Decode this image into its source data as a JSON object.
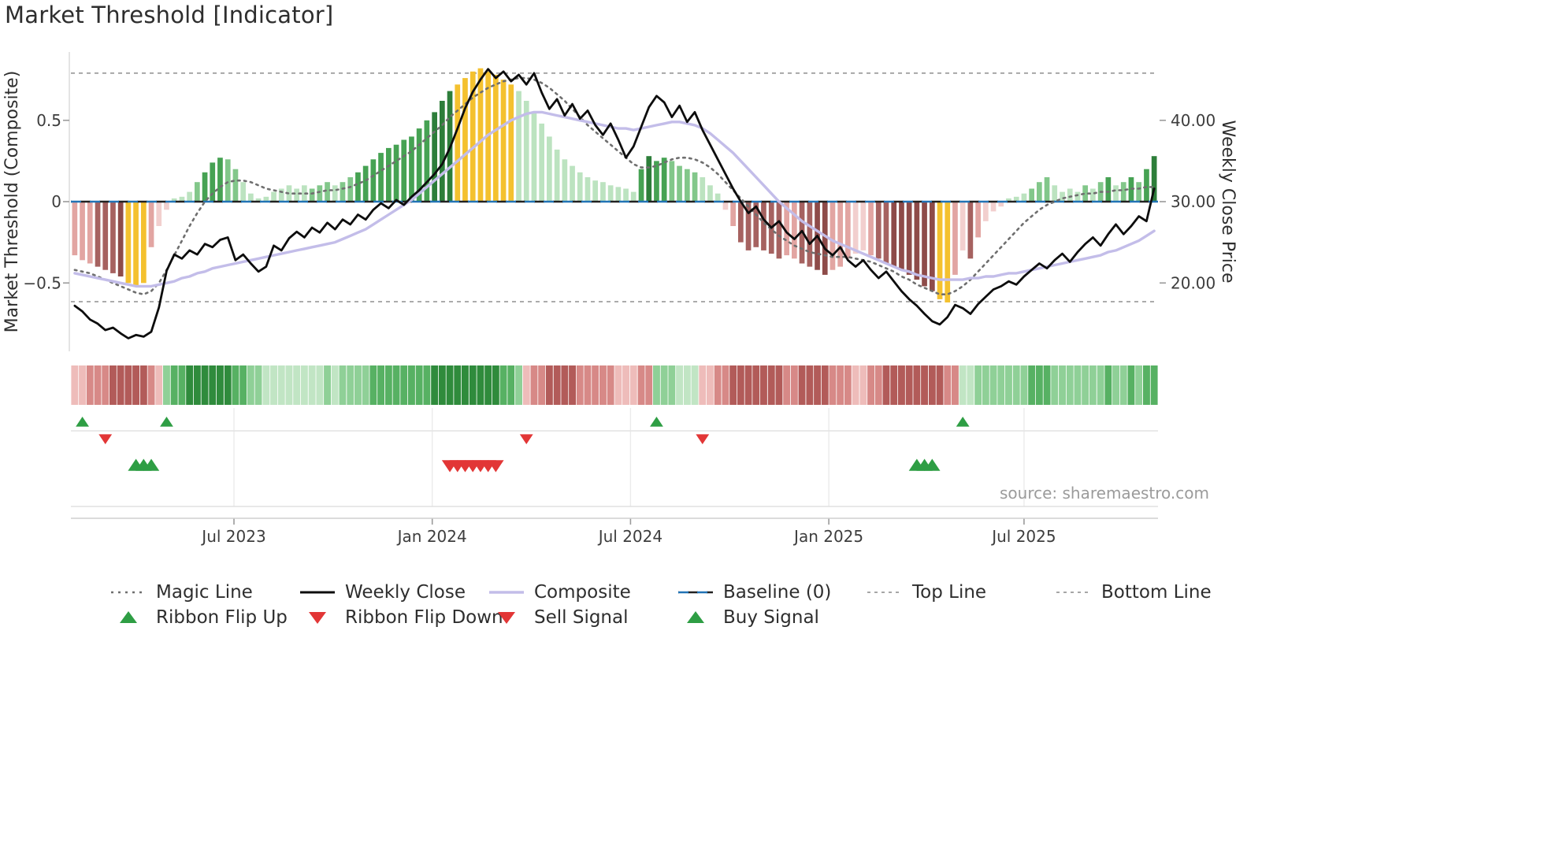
{
  "title": "Market Threshold [Indicator]",
  "source": "source: sharemaestro.com",
  "legend": {
    "row1": [
      {
        "label": "Magic Line",
        "type": "line",
        "color": "#6f6f6f",
        "dash": "3 6",
        "width": 2.6
      },
      {
        "label": "Weekly Close",
        "type": "line",
        "color": "#0d0d0d",
        "dash": "",
        "width": 3
      },
      {
        "label": "Composite",
        "type": "line",
        "color": "#c3bde9",
        "dash": "",
        "width": 3.5
      },
      {
        "label": "Baseline (0)",
        "type": "dashpair",
        "color": "#2273b5",
        "color2": "#222222",
        "dash": "13 11",
        "width": 2.6
      },
      {
        "label": "Top Line",
        "type": "line",
        "color": "#9a9a9a",
        "dash": "4 5",
        "width": 1.8
      },
      {
        "label": "Bottom Line",
        "type": "line",
        "color": "#9a9a9a",
        "dash": "4 5",
        "width": 1.8
      }
    ],
    "row2": [
      {
        "label": "Ribbon Flip Up",
        "type": "tri-up",
        "color": "#2e9e44"
      },
      {
        "label": "Ribbon Flip Down",
        "type": "tri-down",
        "color": "#e23636"
      },
      {
        "label": "Sell Signal",
        "type": "tri-down",
        "color": "#e23636"
      },
      {
        "label": "Buy Signal",
        "type": "tri-up",
        "color": "#2e9e44"
      }
    ]
  },
  "chart_data": {
    "type": "bar+line",
    "title": "Market Threshold [Indicator]",
    "frequency": "weekly",
    "left_axis": {
      "title": "Market Threshold (Composite)",
      "ticks": [
        {
          "v": 0.5,
          "label": "0.5"
        },
        {
          "v": 0,
          "label": "0"
        },
        {
          "v": -0.5,
          "label": "−0.5"
        }
      ],
      "ylim": [
        -0.9,
        0.9
      ]
    },
    "right_axis": {
      "title": "Weekly Close Price",
      "ticks": [
        {
          "v": 0.5,
          "label": "40.00"
        },
        {
          "v": 0,
          "label": "30.00"
        },
        {
          "v": -0.5,
          "label": "20.00"
        }
      ],
      "ylim": [
        12,
        48
      ]
    },
    "x_axis": {
      "ticks": [
        {
          "week": 21.3,
          "label": "Jul 2023"
        },
        {
          "week": 47.2,
          "label": "Jan 2024"
        },
        {
          "week": 73.1,
          "label": "Jul 2024"
        },
        {
          "week": 99.0,
          "label": "Jan 2025"
        },
        {
          "week": 124.5,
          "label": "Jul 2025"
        }
      ]
    },
    "baseline": 0,
    "top_line": 0.79,
    "bottom_line": -0.615,
    "threshold": [
      -0.33,
      -0.36,
      -0.38,
      -0.4,
      -0.42,
      -0.44,
      -0.46,
      -0.5,
      -0.52,
      -0.5,
      -0.28,
      -0.15,
      -0.05,
      0.02,
      0.03,
      0.06,
      0.12,
      0.18,
      0.24,
      0.27,
      0.26,
      0.2,
      0.12,
      0.05,
      0.02,
      0.03,
      0.06,
      0.08,
      0.1,
      0.08,
      0.1,
      0.08,
      0.1,
      0.12,
      0.1,
      0.12,
      0.15,
      0.18,
      0.22,
      0.26,
      0.3,
      0.33,
      0.35,
      0.38,
      0.4,
      0.45,
      0.5,
      0.55,
      0.62,
      0.68,
      0.72,
      0.76,
      0.8,
      0.82,
      0.8,
      0.78,
      0.75,
      0.72,
      0.68,
      0.62,
      0.55,
      0.48,
      0.4,
      0.32,
      0.26,
      0.22,
      0.18,
      0.15,
      0.13,
      0.12,
      0.1,
      0.09,
      0.08,
      0.06,
      0.2,
      0.28,
      0.25,
      0.27,
      0.25,
      0.22,
      0.2,
      0.18,
      0.15,
      0.1,
      0.05,
      -0.05,
      -0.15,
      -0.25,
      -0.3,
      -0.28,
      -0.3,
      -0.32,
      -0.35,
      -0.33,
      -0.35,
      -0.38,
      -0.4,
      -0.42,
      -0.45,
      -0.42,
      -0.4,
      -0.35,
      -0.32,
      -0.3,
      -0.33,
      -0.35,
      -0.38,
      -0.4,
      -0.42,
      -0.45,
      -0.48,
      -0.52,
      -0.55,
      -0.6,
      -0.62,
      -0.45,
      -0.3,
      -0.35,
      -0.22,
      -0.12,
      -0.06,
      -0.03,
      0.02,
      0.03,
      0.05,
      0.08,
      0.12,
      0.15,
      0.1,
      0.06,
      0.08,
      0.06,
      0.1,
      0.08,
      0.12,
      0.15,
      0.1,
      0.12,
      0.15,
      0.12,
      0.2,
      0.28
    ],
    "bar_colors": [
      "pM",
      "pM",
      "pM",
      "rD",
      "rD",
      "rD",
      "rK",
      "Y",
      "Y",
      "Y",
      "pM",
      "pL",
      "pL",
      "gL",
      "gL",
      "gL",
      "gM",
      "gD",
      "gD",
      "gD",
      "gM",
      "gM",
      "gL",
      "gL",
      "gL",
      "gL",
      "gL",
      "gL",
      "gL",
      "gL",
      "gL",
      "gM",
      "gM",
      "gM",
      "gL",
      "gM",
      "gM",
      "gD",
      "gD",
      "gD",
      "gD",
      "gD",
      "gD",
      "gD",
      "gD",
      "gD",
      "gD",
      "gK",
      "gK",
      "gK",
      "Y",
      "Y",
      "Y",
      "Y",
      "Y",
      "Y",
      "Y",
      "Y",
      "gL",
      "gL",
      "gL",
      "gL",
      "gL",
      "gL",
      "gL",
      "gL",
      "gL",
      "gL",
      "gL",
      "gL",
      "gL",
      "gL",
      "gL",
      "gL",
      "gD",
      "gK",
      "gD",
      "gD",
      "gM",
      "gM",
      "gM",
      "gM",
      "gL",
      "gL",
      "gL",
      "pL",
      "pM",
      "rD",
      "rD",
      "rD",
      "rD",
      "rD",
      "rD",
      "pM",
      "pM",
      "rD",
      "rD",
      "rK",
      "rK",
      "pM",
      "pM",
      "pM",
      "pL",
      "pL",
      "pM",
      "rD",
      "rD",
      "rK",
      "rK",
      "rK",
      "rK",
      "rK",
      "rK",
      "Y",
      "Y",
      "pM",
      "pL",
      "rD",
      "pM",
      "pL",
      "pL",
      "pL",
      "gL",
      "gL",
      "gL",
      "gM",
      "gM",
      "gM",
      "gL",
      "gL",
      "gL",
      "gL",
      "gM",
      "gL",
      "gM",
      "gD",
      "gL",
      "gM",
      "gD",
      "gM",
      "gD",
      "gK"
    ],
    "weekly_close": [
      17.2,
      16.5,
      15.5,
      15.0,
      14.2,
      14.5,
      13.8,
      13.2,
      13.6,
      13.4,
      14.0,
      17.0,
      21.5,
      23.5,
      23.0,
      24.0,
      23.5,
      24.8,
      24.4,
      25.3,
      25.6,
      22.8,
      23.5,
      22.4,
      21.4,
      22.0,
      24.6,
      24.0,
      25.5,
      26.3,
      25.6,
      26.8,
      26.2,
      27.4,
      26.6,
      27.8,
      27.2,
      28.4,
      27.8,
      29.0,
      29.8,
      29.2,
      30.2,
      29.6,
      30.6,
      31.4,
      32.4,
      33.4,
      34.6,
      36.6,
      39.0,
      41.5,
      43.5,
      45.0,
      46.3,
      45.2,
      46.0,
      44.8,
      45.6,
      44.4,
      45.8,
      43.4,
      41.4,
      42.6,
      40.6,
      42.0,
      40.2,
      41.2,
      39.4,
      38.2,
      39.6,
      37.6,
      35.4,
      36.8,
      39.2,
      41.6,
      43.0,
      42.2,
      40.4,
      41.8,
      39.8,
      41.0,
      38.8,
      37.0,
      35.2,
      33.4,
      31.6,
      30.0,
      28.6,
      29.4,
      27.8,
      26.8,
      27.6,
      26.2,
      25.4,
      26.4,
      24.8,
      25.8,
      24.2,
      23.4,
      24.4,
      22.8,
      22.0,
      22.8,
      21.6,
      20.6,
      21.4,
      20.2,
      19.0,
      18.0,
      17.2,
      16.2,
      15.3,
      14.9,
      15.8,
      17.3,
      16.9,
      16.2,
      17.4,
      18.3,
      19.2,
      19.6,
      20.2,
      19.8,
      20.8,
      21.6,
      22.4,
      21.8,
      22.8,
      23.6,
      22.6,
      23.8,
      24.8,
      25.6,
      24.6,
      26.0,
      27.2,
      26.0,
      27.0,
      28.2,
      27.6,
      31.6
    ],
    "magic_line": [
      -0.42,
      -0.43,
      -0.44,
      -0.46,
      -0.48,
      -0.5,
      -0.52,
      -0.54,
      -0.56,
      -0.57,
      -0.55,
      -0.5,
      -0.42,
      -0.33,
      -0.24,
      -0.15,
      -0.07,
      0.0,
      0.05,
      0.09,
      0.12,
      0.13,
      0.13,
      0.12,
      0.1,
      0.08,
      0.07,
      0.06,
      0.05,
      0.05,
      0.05,
      0.05,
      0.06,
      0.07,
      0.07,
      0.08,
      0.09,
      0.11,
      0.13,
      0.16,
      0.19,
      0.22,
      0.25,
      0.28,
      0.31,
      0.35,
      0.39,
      0.43,
      0.47,
      0.52,
      0.56,
      0.6,
      0.64,
      0.67,
      0.7,
      0.72,
      0.74,
      0.75,
      0.76,
      0.76,
      0.75,
      0.73,
      0.7,
      0.66,
      0.62,
      0.57,
      0.52,
      0.47,
      0.43,
      0.39,
      0.35,
      0.31,
      0.27,
      0.23,
      0.21,
      0.21,
      0.22,
      0.24,
      0.26,
      0.27,
      0.27,
      0.26,
      0.24,
      0.21,
      0.17,
      0.12,
      0.07,
      0.02,
      -0.03,
      -0.08,
      -0.13,
      -0.17,
      -0.21,
      -0.24,
      -0.27,
      -0.29,
      -0.31,
      -0.32,
      -0.33,
      -0.34,
      -0.34,
      -0.34,
      -0.35,
      -0.36,
      -0.37,
      -0.39,
      -0.41,
      -0.43,
      -0.46,
      -0.48,
      -0.51,
      -0.53,
      -0.55,
      -0.57,
      -0.57,
      -0.55,
      -0.52,
      -0.48,
      -0.43,
      -0.38,
      -0.33,
      -0.28,
      -0.23,
      -0.18,
      -0.13,
      -0.09,
      -0.05,
      -0.02,
      0.0,
      0.02,
      0.03,
      0.04,
      0.05,
      0.05,
      0.06,
      0.06,
      0.07,
      0.07,
      0.08,
      0.08,
      0.09,
      0.09
    ],
    "composite": [
      -0.44,
      -0.45,
      -0.46,
      -0.47,
      -0.48,
      -0.49,
      -0.5,
      -0.51,
      -0.52,
      -0.52,
      -0.52,
      -0.51,
      -0.5,
      -0.49,
      -0.47,
      -0.46,
      -0.44,
      -0.43,
      -0.41,
      -0.4,
      -0.39,
      -0.38,
      -0.37,
      -0.36,
      -0.35,
      -0.34,
      -0.33,
      -0.32,
      -0.31,
      -0.3,
      -0.29,
      -0.28,
      -0.27,
      -0.26,
      -0.25,
      -0.23,
      -0.21,
      -0.19,
      -0.17,
      -0.14,
      -0.11,
      -0.08,
      -0.05,
      -0.02,
      0.01,
      0.05,
      0.09,
      0.13,
      0.17,
      0.21,
      0.25,
      0.29,
      0.33,
      0.37,
      0.41,
      0.44,
      0.47,
      0.5,
      0.52,
      0.54,
      0.55,
      0.55,
      0.54,
      0.53,
      0.52,
      0.51,
      0.5,
      0.49,
      0.48,
      0.47,
      0.46,
      0.45,
      0.45,
      0.44,
      0.45,
      0.46,
      0.47,
      0.48,
      0.49,
      0.49,
      0.48,
      0.47,
      0.45,
      0.42,
      0.38,
      0.34,
      0.3,
      0.25,
      0.2,
      0.15,
      0.1,
      0.05,
      0.0,
      -0.04,
      -0.08,
      -0.12,
      -0.15,
      -0.18,
      -0.21,
      -0.24,
      -0.26,
      -0.28,
      -0.3,
      -0.32,
      -0.34,
      -0.36,
      -0.38,
      -0.4,
      -0.42,
      -0.43,
      -0.45,
      -0.46,
      -0.47,
      -0.48,
      -0.48,
      -0.48,
      -0.48,
      -0.47,
      -0.47,
      -0.46,
      -0.46,
      -0.45,
      -0.44,
      -0.44,
      -0.43,
      -0.42,
      -0.41,
      -0.4,
      -0.39,
      -0.38,
      -0.37,
      -0.36,
      -0.35,
      -0.34,
      -0.33,
      -0.31,
      -0.3,
      -0.28,
      -0.26,
      -0.24,
      -0.21,
      -0.18
    ],
    "ribbon": [
      "R1",
      "R1",
      "R2",
      "R2",
      "R2",
      "R3",
      "R3",
      "R3",
      "R3",
      "R3",
      "R2",
      "R1",
      "G2",
      "G3",
      "G3",
      "G4",
      "G4",
      "G4",
      "G4",
      "G4",
      "G4",
      "G3",
      "G3",
      "G2",
      "G2",
      "G1",
      "G1",
      "G1",
      "G1",
      "G1",
      "G1",
      "G1",
      "G1",
      "G2",
      "G1",
      "G2",
      "G2",
      "G2",
      "G2",
      "G3",
      "G3",
      "G3",
      "G3",
      "G3",
      "G3",
      "G3",
      "G3",
      "G4",
      "G4",
      "G4",
      "G4",
      "G4",
      "G4",
      "G4",
      "G4",
      "G4",
      "G3",
      "G3",
      "G2",
      "R1",
      "R2",
      "R2",
      "R3",
      "R3",
      "R3",
      "R3",
      "R2",
      "R2",
      "R2",
      "R2",
      "R2",
      "R1",
      "R1",
      "R1",
      "R2",
      "R2",
      "G2",
      "G2",
      "G2",
      "G1",
      "G1",
      "G1",
      "R1",
      "R1",
      "R2",
      "R2",
      "R3",
      "R3",
      "R3",
      "R3",
      "R3",
      "R3",
      "R3",
      "R2",
      "R2",
      "R3",
      "R3",
      "R3",
      "R3",
      "R2",
      "R2",
      "R2",
      "R1",
      "R1",
      "R2",
      "R2",
      "R3",
      "R3",
      "R3",
      "R3",
      "R3",
      "R3",
      "R3",
      "R3",
      "R2",
      "R2",
      "G1",
      "G1",
      "G2",
      "G2",
      "G2",
      "G2",
      "G2",
      "G2",
      "G2",
      "G3",
      "G3",
      "G3",
      "G2",
      "G2",
      "G2",
      "G2",
      "G2",
      "G2",
      "G2",
      "G3",
      "G2",
      "G2",
      "G3",
      "G2",
      "G3",
      "G3"
    ],
    "signals": {
      "ribbon_flip_up_weeks": [
        1,
        12,
        76,
        116
      ],
      "ribbon_flip_down_weeks": [
        4,
        59,
        82
      ],
      "buy_signal_weeks": [
        8,
        9,
        10,
        110,
        111,
        112
      ],
      "sell_signal_weeks": [
        49,
        50,
        51,
        52,
        53,
        54,
        55
      ]
    },
    "palette": {
      "bar": {
        "pL": "#f2cfce",
        "pM": "#e2a5a2",
        "rD": "#a66260",
        "rK": "#8e4b49",
        "Y": "#f4c12f",
        "gL": "#bce3c0",
        "gM": "#82c78a",
        "gD": "#46a253",
        "gK": "#2d7e3a"
      },
      "ribbon": {
        "R1": "#eebcba",
        "R2": "#d78987",
        "R3": "#b25b59",
        "G1": "#c1e5c4",
        "G2": "#8fd097",
        "G3": "#57b163",
        "G4": "#2f8b3c"
      },
      "weekly_close_line": "#0d0d0d",
      "magic_line": "#6f6f6f",
      "composite_line": "#c3bde9",
      "baseline_blue": "#2273b5",
      "baseline_dark": "#222222",
      "top_bottom_line": "#8f8f8f",
      "signal_green": "#2e9e44",
      "signal_red": "#e23636"
    }
  }
}
